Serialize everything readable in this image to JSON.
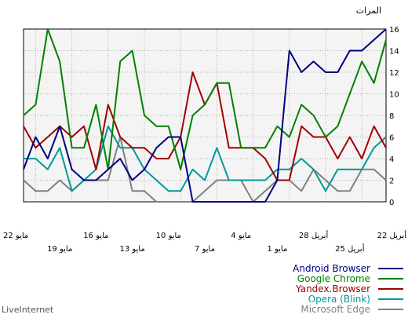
{
  "brand": "LiveInternet",
  "chart_data": {
    "type": "line",
    "ylabel": "المرات",
    "ylim": [
      0,
      16
    ],
    "yticks": [
      0,
      2,
      4,
      6,
      8,
      10,
      12,
      14,
      16
    ],
    "x_direction": "right-to-left",
    "x_dates": [
      "22 مايو",
      "21 مايو",
      "20 مايو",
      "19 مايو",
      "18 مايو",
      "17 مايو",
      "16 مايو",
      "15 مايو",
      "14 مايو",
      "13 مايو",
      "12 مايو",
      "11 مايو",
      "10 مايو",
      "9 مايو",
      "8 مايو",
      "7 مايو",
      "6 مايو",
      "5 مايو",
      "4 مايو",
      "3 مايو",
      "2 مايو",
      "1 مايو",
      "30 أبريل",
      "29 أبريل",
      "28 أبريل",
      "27 أبريل",
      "26 أبريل",
      "25 أبريل",
      "24 أبريل",
      "23 أبريل",
      "22 أبريل"
    ],
    "x_tick_labels_upper": [
      "22 مايو",
      "16 مايو",
      "10 مايو",
      "4 مايو",
      "28 أبريل",
      "22 أبريل"
    ],
    "x_tick_labels_lower": [
      "19 مايو",
      "13 مايو",
      "7 مايو",
      "1 مايو",
      "25 أبريل"
    ],
    "grid": true,
    "legend_position": "bottom-right",
    "series": [
      {
        "name": "Android Browser",
        "color": "#000080",
        "values": [
          3,
          6,
          4,
          7,
          3,
          2,
          2,
          3,
          4,
          2,
          3,
          5,
          6,
          6,
          0,
          0,
          0,
          0,
          0,
          0,
          0,
          2,
          14,
          12,
          13,
          12,
          12,
          14,
          14,
          15,
          16
        ]
      },
      {
        "name": "Google Chrome",
        "color": "#008000",
        "values": [
          8,
          9,
          16,
          13,
          5,
          5,
          9,
          3,
          13,
          14,
          8,
          7,
          7,
          3,
          8,
          9,
          11,
          11,
          5,
          5,
          5,
          7,
          6,
          9,
          8,
          6,
          7,
          10,
          13,
          11,
          15
        ]
      },
      {
        "name": "Yandex.Browser",
        "color": "#a00000",
        "values": [
          7,
          5,
          6,
          7,
          6,
          7,
          3,
          9,
          6,
          5,
          5,
          4,
          4,
          6,
          12,
          9,
          11,
          5,
          5,
          5,
          4,
          2,
          2,
          7,
          6,
          6,
          4,
          6,
          4,
          7,
          5
        ]
      },
      {
        "name": "Opera (Blink)",
        "color": "#009999",
        "values": [
          4,
          4,
          3,
          5,
          1,
          2,
          3,
          7,
          5,
          5,
          3,
          2,
          1,
          1,
          3,
          2,
          5,
          2,
          2,
          2,
          2,
          3,
          3,
          4,
          3,
          1,
          3,
          3,
          3,
          5,
          6
        ]
      },
      {
        "name": "Microsoft Edge",
        "color": "#808080",
        "values": [
          2,
          1,
          1,
          2,
          1,
          2,
          2,
          2,
          6,
          1,
          1,
          0,
          0,
          0,
          0,
          1,
          2,
          2,
          2,
          0,
          1,
          2,
          2,
          1,
          3,
          2,
          1,
          1,
          3,
          3,
          2
        ]
      }
    ]
  }
}
